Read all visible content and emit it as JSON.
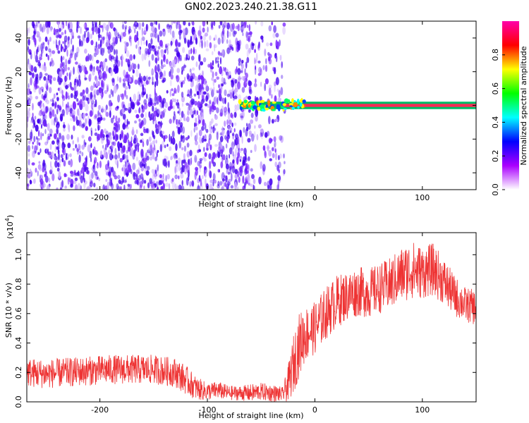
{
  "figure_title": "GN02.2023.240.21.38.G11",
  "colors": {
    "snr_line": "#ee3333",
    "carrier_band": "#ff2a55",
    "scatter_base": "#5500ee"
  },
  "chart_data": [
    {
      "type": "heatmap",
      "title": "",
      "xlabel": "Height of straight line (km)",
      "ylabel": "Frequency (Hz)",
      "xlim": [
        -268,
        150
      ],
      "ylim": [
        -50,
        50
      ],
      "xticks": [
        -200,
        -100,
        0,
        100
      ],
      "xtick_labels": [
        "-200",
        "-100",
        "0",
        "100"
      ],
      "yticks": [
        -40,
        -20,
        0,
        20,
        40
      ],
      "ytick_labels": [
        "-40",
        "-20",
        "0",
        "20",
        "40"
      ],
      "colorbar": {
        "label": "Normalized spectral amplitude",
        "range": [
          0,
          1
        ],
        "ticks": [
          0,
          0.2,
          0.4,
          0.6,
          0.8
        ],
        "tick_labels": [
          "0.0",
          "0.2",
          "0.4",
          "0.6",
          "0.8"
        ],
        "colormap": [
          "#ffffff",
          "#aa00ff",
          "#0000ff",
          "#00ffff",
          "#00ff00",
          "#ffff00",
          "#ff0000",
          "#ff00aa"
        ]
      },
      "carrier_band": {
        "frequency_hz": 0,
        "x_start": -70,
        "x_end": 150,
        "amplitude": 0.95
      },
      "scatter_region": {
        "x_start": -268,
        "x_end": -28,
        "amplitude_max": 0.25
      }
    },
    {
      "type": "line",
      "title": "",
      "xlabel": "Height of straight line (km)",
      "ylabel": "SNR (10 * v/v)",
      "y_multiplier": "(x10",
      "y_multiplier_exp": "4",
      "y_multiplier_close": ")",
      "xlim": [
        -268,
        150
      ],
      "ylim": [
        0,
        1.15
      ],
      "xticks": [
        -200,
        -100,
        0,
        100
      ],
      "xtick_labels": [
        "-200",
        "-100",
        "0",
        "100"
      ],
      "yticks": [
        0,
        0.2,
        0.4,
        0.6,
        0.8,
        1.0
      ],
      "ytick_labels": [
        "0.0",
        "0.2",
        "0.4",
        "0.6",
        "0.8",
        "1.0"
      ],
      "series": [
        {
          "x": [
            -268,
            -250,
            -230,
            -210,
            -190,
            -170,
            -150,
            -130,
            -120,
            -110,
            -100,
            -90,
            -80,
            -70,
            -60,
            -50,
            -40,
            -30,
            -25,
            -20,
            -15,
            -10,
            -5,
            0,
            5,
            10,
            20,
            30,
            40,
            50,
            60,
            70,
            80,
            90,
            100,
            110,
            120,
            130,
            140,
            150
          ],
          "y": [
            0.2,
            0.19,
            0.2,
            0.21,
            0.22,
            0.22,
            0.22,
            0.2,
            0.15,
            0.09,
            0.07,
            0.08,
            0.06,
            0.06,
            0.06,
            0.07,
            0.06,
            0.05,
            0.12,
            0.25,
            0.38,
            0.45,
            0.48,
            0.5,
            0.55,
            0.6,
            0.68,
            0.72,
            0.75,
            0.74,
            0.77,
            0.8,
            0.86,
            0.9,
            0.88,
            0.9,
            0.82,
            0.72,
            0.66,
            0.64
          ],
          "envelope": [
            0.1,
            0.1,
            0.1,
            0.1,
            0.1,
            0.1,
            0.1,
            0.1,
            0.1,
            0.08,
            0.06,
            0.06,
            0.05,
            0.05,
            0.06,
            0.06,
            0.06,
            0.05,
            0.12,
            0.2,
            0.22,
            0.2,
            0.18,
            0.18,
            0.18,
            0.18,
            0.18,
            0.17,
            0.17,
            0.17,
            0.17,
            0.18,
            0.19,
            0.2,
            0.18,
            0.18,
            0.16,
            0.14,
            0.12,
            0.12
          ]
        }
      ]
    }
  ]
}
